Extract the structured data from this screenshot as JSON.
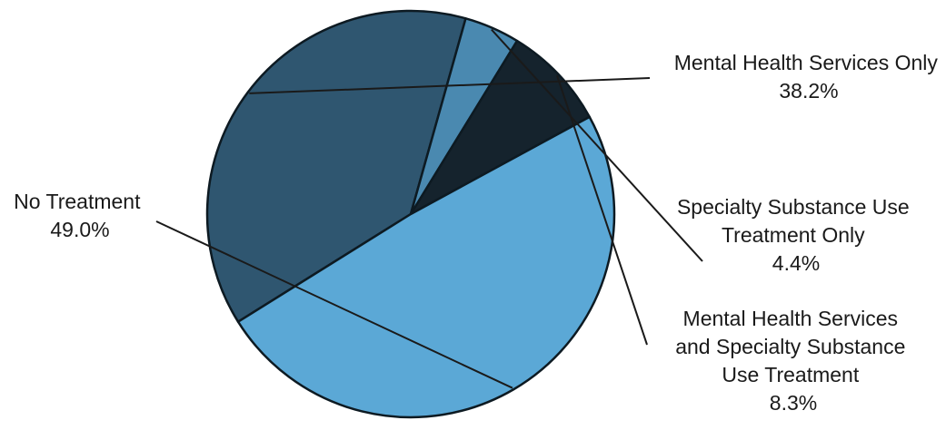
{
  "chart_data": {
    "type": "pie",
    "title": "",
    "unit": "%",
    "start_angle_deg": 238,
    "direction": "clockwise",
    "slices": [
      {
        "key": "mh",
        "lines": [
          "Mental Health Services Only"
        ],
        "percent_label": "38.2%",
        "value": 38.2,
        "color": "#2f5670"
      },
      {
        "key": "sud",
        "lines": [
          "Specialty Substance Use",
          "Treatment Only"
        ],
        "percent_label": "4.4%",
        "value": 4.4,
        "color": "#4a89b0"
      },
      {
        "key": "both",
        "lines": [
          "Mental Health Services",
          "and Specialty Substance",
          "Use Treatment"
        ],
        "percent_label": "8.3%",
        "value": 8.3,
        "color": "#15232d"
      },
      {
        "key": "none",
        "lines": [
          "No Treatment"
        ],
        "percent_label": "49.0%",
        "value": 49.0,
        "color": "#5ba8d6"
      }
    ]
  }
}
